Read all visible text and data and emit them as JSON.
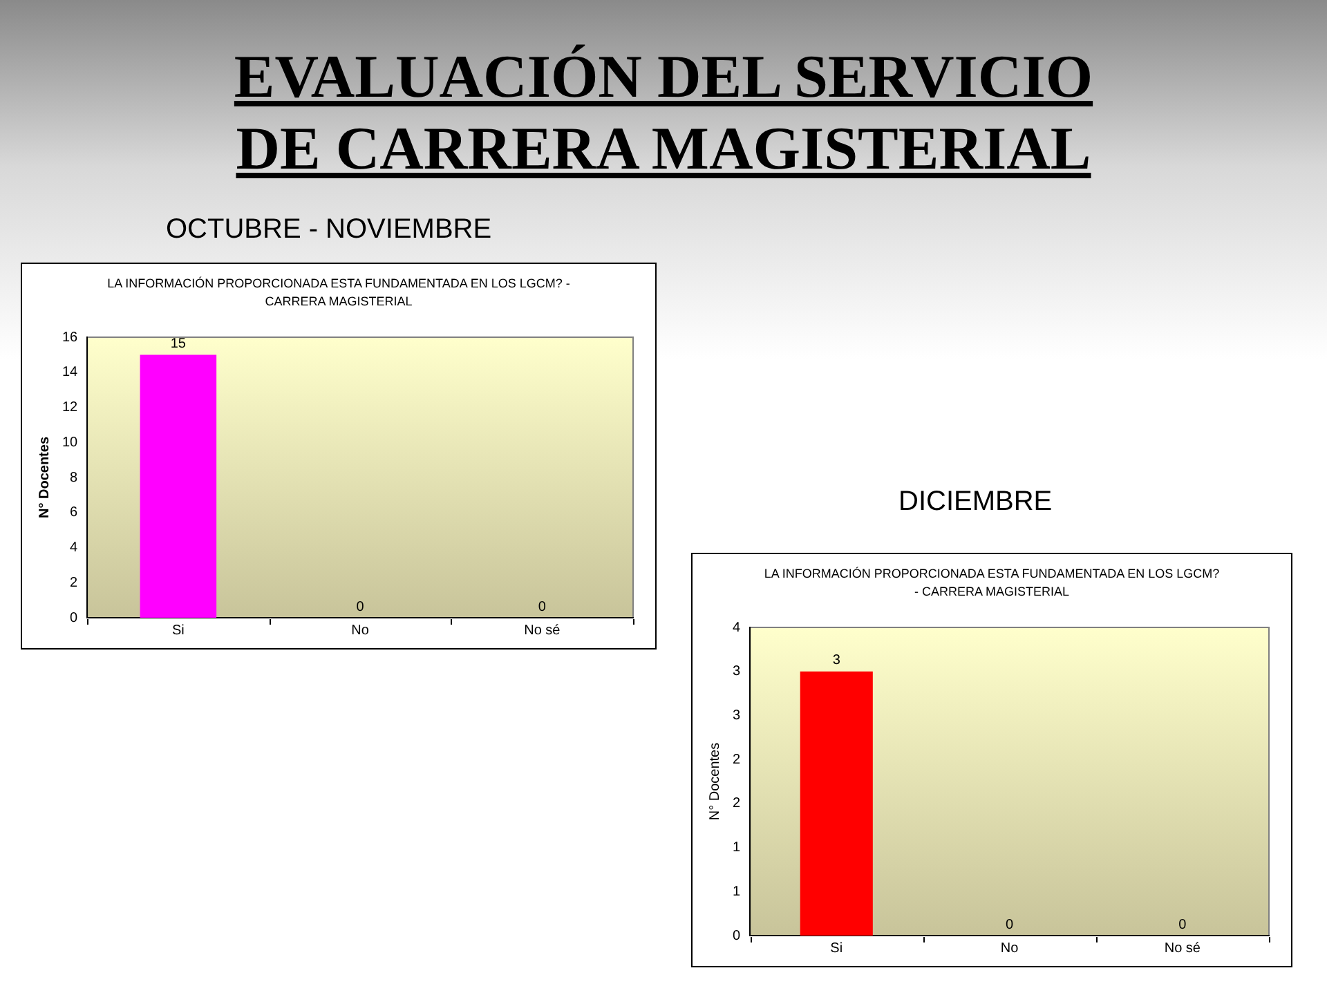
{
  "chart_data": [
    {
      "type": "bar",
      "title": "LA INFORMACIÓN PROPORCIONADA ESTA FUNDAMENTADA EN LOS LGCM? - CARRERA MAGISTERIAL",
      "subtitle": "OCTUBRE - NOVIEMBRE",
      "annotations": [
        "EVALUACIÓN DEL SERVICIO DE CARRERA MAGISTERIAL"
      ],
      "ylabel": "N° Docentes",
      "categories": [
        "Si",
        "No",
        "No sé"
      ],
      "values": [
        15,
        0,
        0
      ],
      "color": "#ff00ff",
      "ylim": [
        0,
        16
      ],
      "yticks": [
        0,
        2,
        4,
        6,
        8,
        10,
        12,
        14,
        16
      ],
      "grid": false,
      "legend": false,
      "data_labels": true
    },
    {
      "type": "bar",
      "title": "LA INFORMACIÓN PROPORCIONADA ESTA FUNDAMENTADA EN LOS LGCM? - CARRERA MAGISTERIAL",
      "subtitle": "DICIEMBRE",
      "ylabel": "N° Docentes",
      "categories": [
        "Si",
        "No",
        "No sé"
      ],
      "values": [
        3,
        0,
        0
      ],
      "color": "#ff0000",
      "ylim": [
        0,
        3.5
      ],
      "yticks": [
        0,
        {
          "value": 0.5,
          "label": "1"
        },
        1,
        {
          "value": 1.5,
          "label": "2"
        },
        2,
        {
          "value": 2.5,
          "label": "3"
        },
        3,
        {
          "value": 3.5,
          "label": "4"
        }
      ],
      "grid": false,
      "legend": false,
      "data_labels": true
    }
  ]
}
